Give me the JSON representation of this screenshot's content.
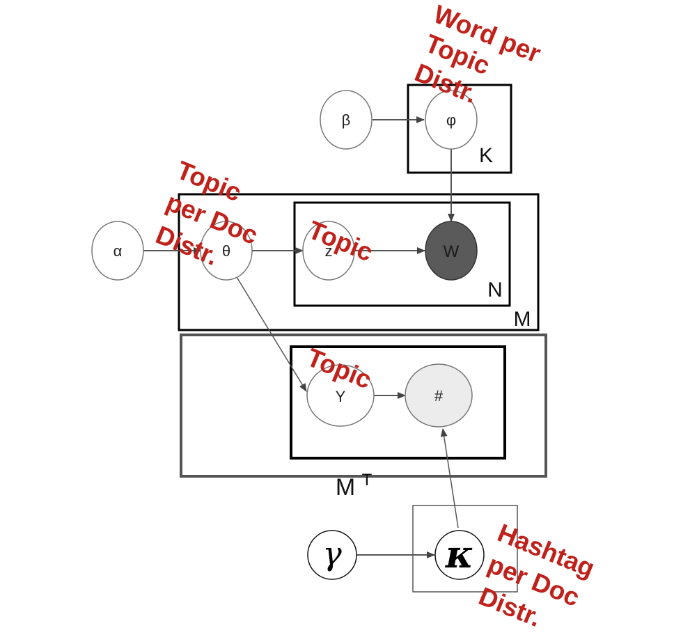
{
  "nodes": {
    "beta": "β",
    "phi": "φ",
    "alpha": "α",
    "theta": "θ",
    "z": "z",
    "w": "W",
    "y": "Y",
    "hashtag": "#",
    "gamma": "γ",
    "kappa": "κ"
  },
  "plates": {
    "k": "K",
    "n": "N",
    "m": "M",
    "mt": "M",
    "mt_sup": "T"
  },
  "annotations": {
    "word_topic": [
      "Word per",
      "Topic",
      "Distr."
    ],
    "topic_doc": [
      "Topic",
      "per Doc",
      "Distr."
    ],
    "topic_z": "Topic",
    "topic_y": "Topic",
    "hashtag_doc": [
      "Hashtag",
      "per Doc",
      "Distr."
    ]
  },
  "colors": {
    "annotation": "#c0211a",
    "observed_node": "#5a5a5a",
    "hashtag_node": "#ececec",
    "edge": "#555555"
  }
}
